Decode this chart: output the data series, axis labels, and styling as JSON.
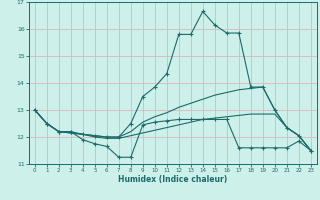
{
  "xlabel": "Humidex (Indice chaleur)",
  "bg_color": "#cdf0ea",
  "grid_color": "#d8b8b8",
  "line_color": "#1a6b6b",
  "xlim": [
    -0.5,
    23.5
  ],
  "ylim": [
    11,
    17
  ],
  "yticks": [
    11,
    12,
    13,
    14,
    15,
    16,
    17
  ],
  "xticks": [
    0,
    1,
    2,
    3,
    4,
    5,
    6,
    7,
    8,
    9,
    10,
    11,
    12,
    13,
    14,
    15,
    16,
    17,
    18,
    19,
    20,
    21,
    22,
    23
  ],
  "line1_x": [
    0,
    1,
    2,
    3,
    4,
    5,
    6,
    7,
    8,
    9,
    10,
    11,
    12,
    13,
    14,
    15,
    16,
    17,
    18,
    19,
    20,
    21,
    22,
    23
  ],
  "line1_y": [
    13.0,
    12.5,
    12.2,
    12.2,
    11.9,
    11.75,
    11.65,
    11.25,
    11.25,
    12.45,
    12.55,
    12.6,
    12.65,
    12.65,
    12.65,
    12.65,
    12.65,
    11.6,
    11.6,
    11.6,
    11.6,
    11.6,
    11.85,
    11.5
  ],
  "line2_x": [
    0,
    1,
    2,
    3,
    4,
    5,
    6,
    7,
    8,
    9,
    10,
    11,
    12,
    13,
    14,
    15,
    16,
    17,
    18,
    19,
    20,
    21,
    22,
    23
  ],
  "line2_y": [
    13.0,
    12.5,
    12.2,
    12.2,
    12.1,
    12.05,
    12.0,
    12.0,
    12.5,
    13.5,
    13.85,
    14.35,
    15.8,
    15.8,
    16.65,
    16.15,
    15.85,
    15.85,
    13.85,
    13.85,
    13.0,
    12.35,
    12.05,
    11.5
  ],
  "line3_x": [
    0,
    1,
    2,
    3,
    4,
    5,
    6,
    7,
    8,
    9,
    10,
    11,
    12,
    13,
    14,
    15,
    16,
    17,
    18,
    19,
    20,
    21,
    22,
    23
  ],
  "line3_y": [
    13.0,
    12.5,
    12.2,
    12.15,
    12.1,
    12.05,
    12.0,
    12.0,
    12.2,
    12.55,
    12.75,
    12.9,
    13.1,
    13.25,
    13.4,
    13.55,
    13.65,
    13.75,
    13.8,
    13.85,
    13.0,
    12.35,
    12.05,
    11.5
  ],
  "line4_x": [
    0,
    1,
    2,
    3,
    4,
    5,
    6,
    7,
    8,
    9,
    10,
    11,
    12,
    13,
    14,
    15,
    16,
    17,
    18,
    19,
    20,
    21,
    22,
    23
  ],
  "line4_y": [
    13.0,
    12.5,
    12.2,
    12.15,
    12.1,
    12.0,
    11.95,
    11.95,
    12.05,
    12.15,
    12.25,
    12.35,
    12.45,
    12.55,
    12.65,
    12.7,
    12.75,
    12.8,
    12.85,
    12.85,
    12.85,
    12.35,
    12.05,
    11.5
  ]
}
